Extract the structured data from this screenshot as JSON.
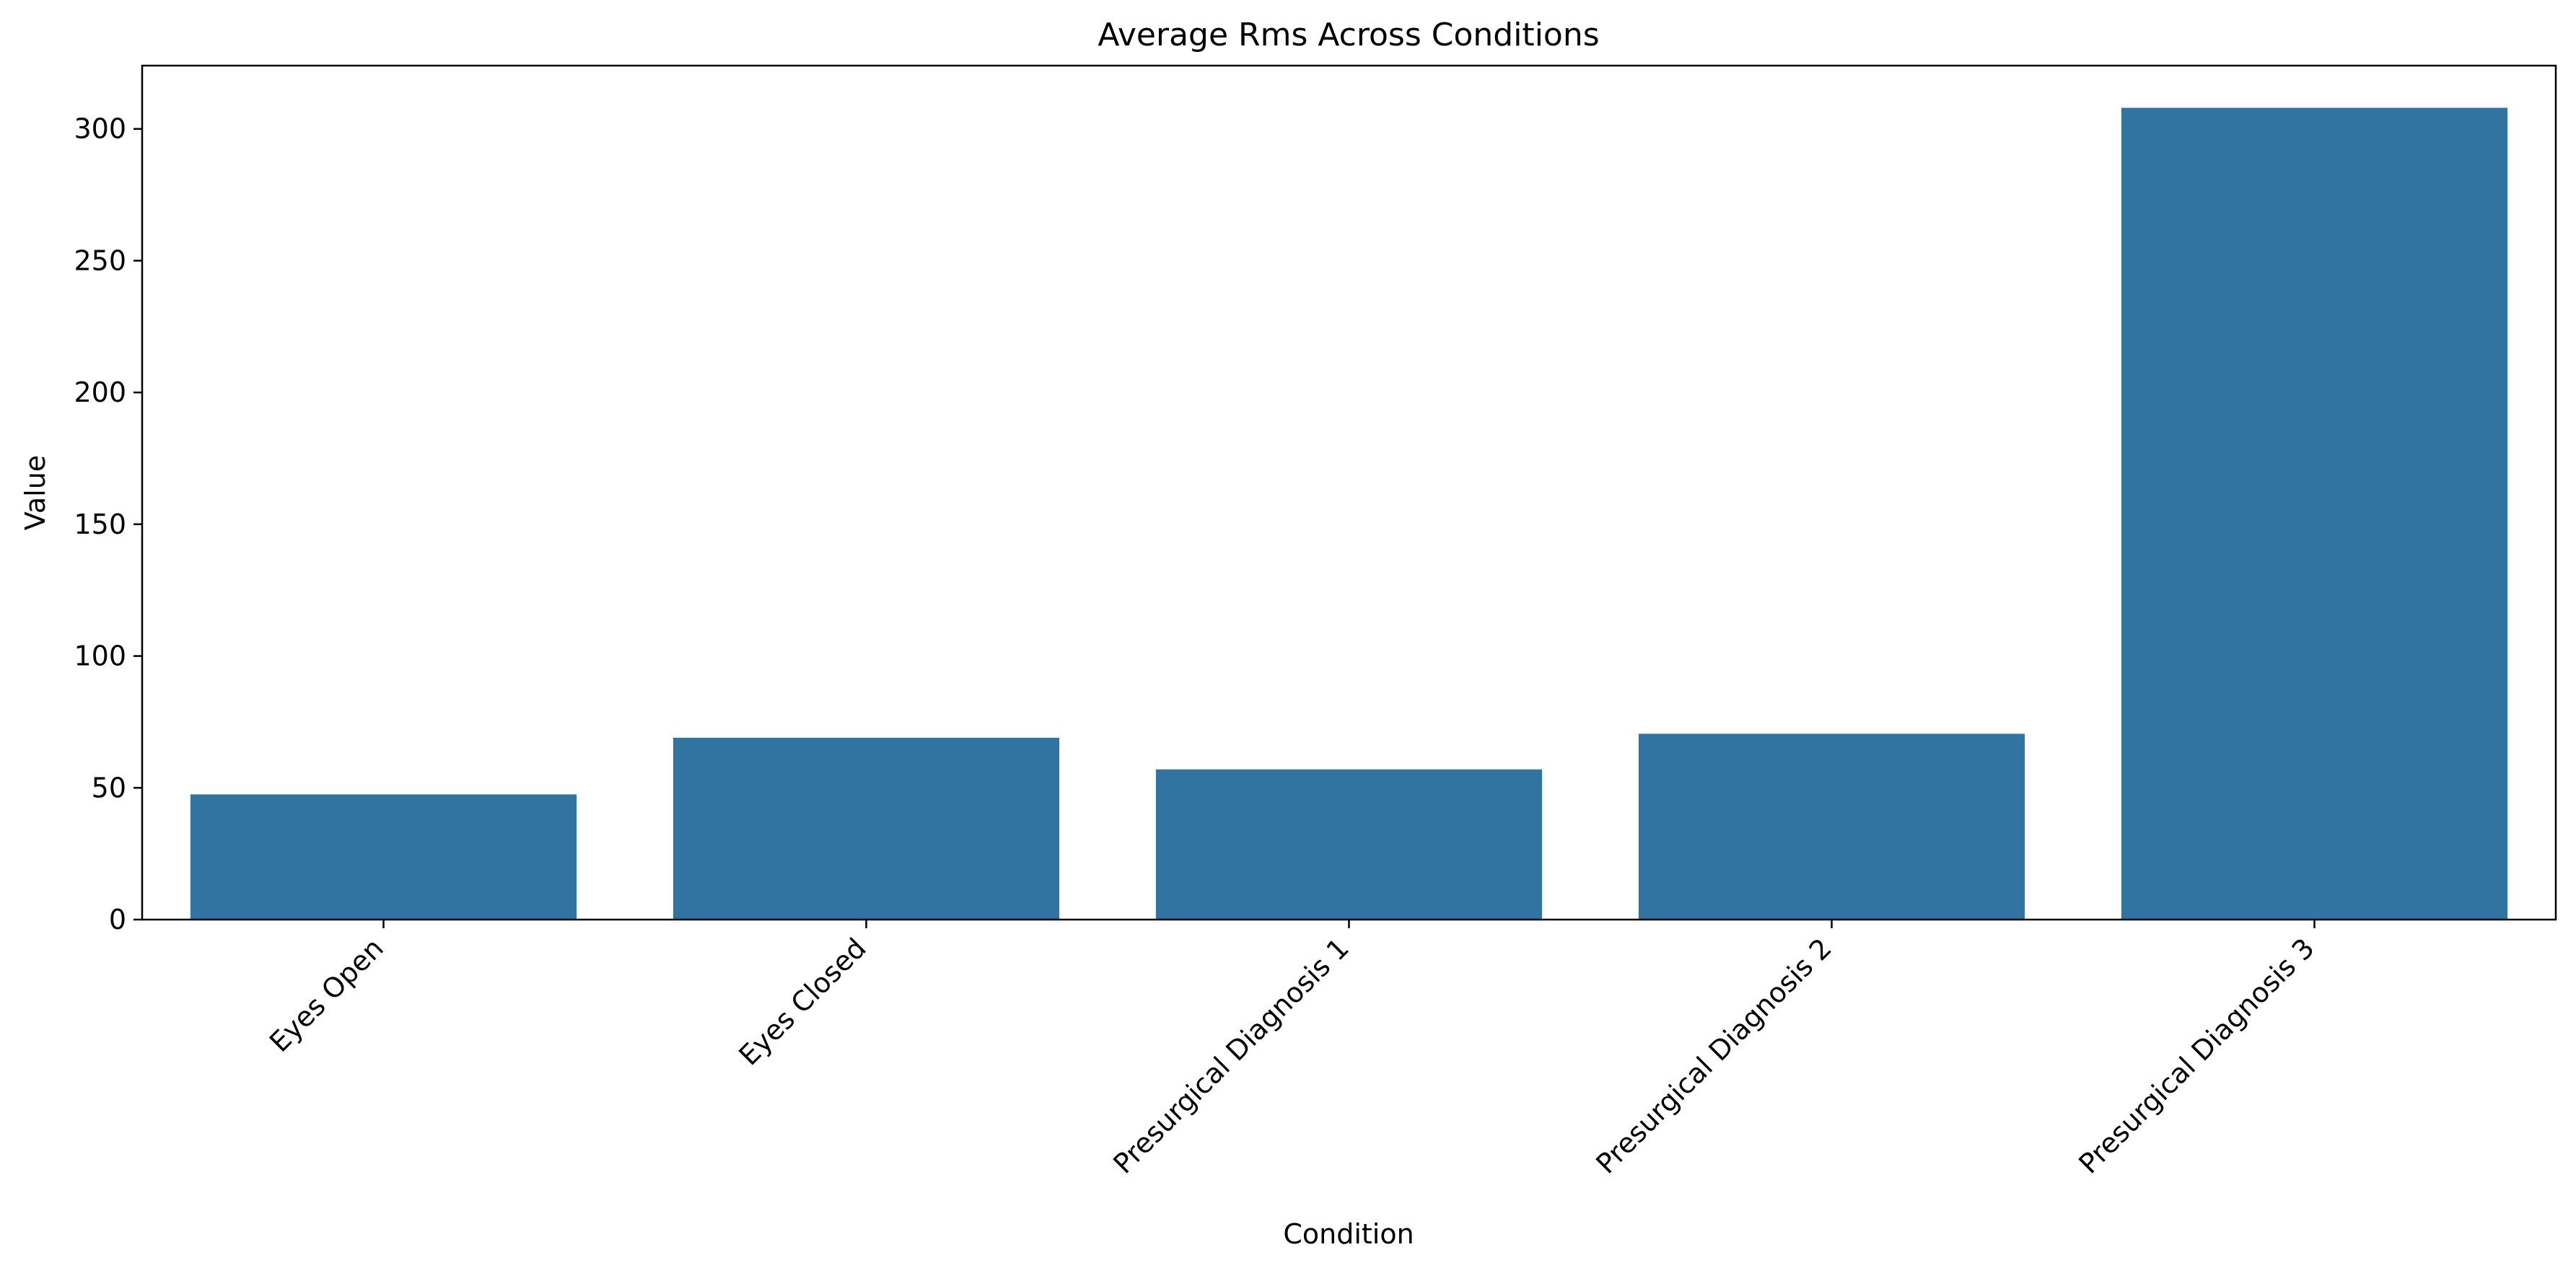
{
  "chart_data": {
    "type": "bar",
    "title": "Average Rms Across Conditions",
    "xlabel": "Condition",
    "ylabel": "Value",
    "categories": [
      "Eyes Open",
      "Eyes Closed",
      "Presurgical Diagnosis 1",
      "Presurgical Diagnosis 2",
      "Presurgical Diagnosis 3"
    ],
    "values": [
      47.5,
      69,
      57,
      70.5,
      308
    ],
    "ylim": [
      0,
      324
    ],
    "yticks": [
      0,
      50,
      100,
      150,
      200,
      250,
      300
    ],
    "bar_color": "#3274a1",
    "grid": false,
    "legend": "none"
  }
}
